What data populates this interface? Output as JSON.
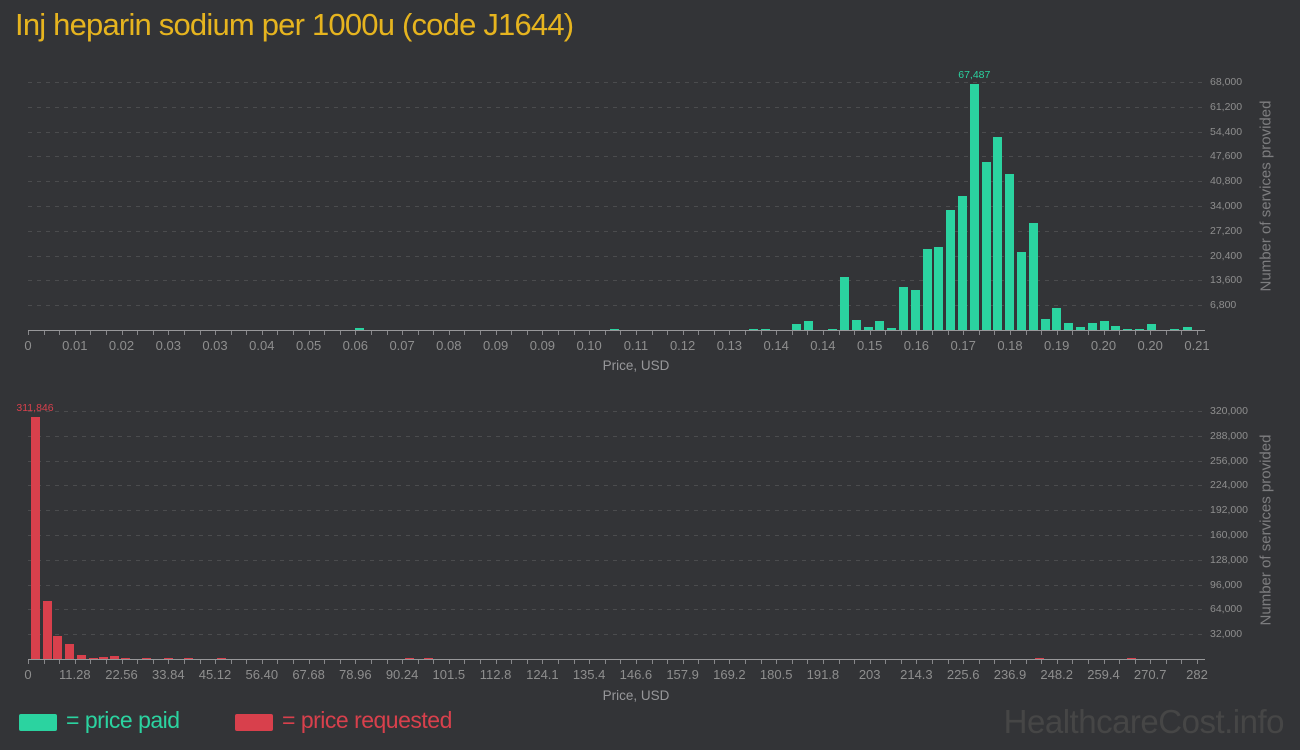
{
  "title": "Inj heparin sodium per 1000u (code J1644)",
  "watermark": "HealthcareCost.info",
  "colors": {
    "background": "#333437",
    "title_gold": "#e6b41f",
    "paid_green": "#2bd3a0",
    "requested_red": "#d8404c",
    "grid": "#4b4c4e",
    "tick_text": "#8e8e8e",
    "axis_line": "#98989a",
    "watermark_gray": "#464646"
  },
  "legend": {
    "paid_label": "= price paid",
    "requested_label": "= price requested"
  },
  "chart_data": [
    {
      "type": "bar",
      "series_name": "price paid",
      "color": "#2bd3a0",
      "xlabel": "Price, USD",
      "ylabel": "Number of services provided",
      "xlim": [
        0,
        0.21
      ],
      "ylim": [
        0,
        73500
      ],
      "grid": true,
      "legend_position": "bottom-left",
      "peak_label": "67,487",
      "x_tick_labels": [
        "0",
        "0.01",
        "0.02",
        "0.03",
        "0.03",
        "0.04",
        "0.05",
        "0.06",
        "0.07",
        "0.08",
        "0.09",
        "0.09",
        "0.10",
        "0.11",
        "0.12",
        "0.13",
        "0.14",
        "0.14",
        "0.15",
        "0.16",
        "0.17",
        "0.18",
        "0.19",
        "0.20",
        "0.20",
        "0.21"
      ],
      "y_ticks": [
        {
          "value": 6800,
          "label": "6,800"
        },
        {
          "value": 13600,
          "label": "13,600"
        },
        {
          "value": 20400,
          "label": "20,400"
        },
        {
          "value": 27200,
          "label": "27,200"
        },
        {
          "value": 34000,
          "label": "34,000"
        },
        {
          "value": 40800,
          "label": "40,800"
        },
        {
          "value": 47600,
          "label": "47,600"
        },
        {
          "value": 54400,
          "label": "54,400"
        },
        {
          "value": 61200,
          "label": "61,200"
        },
        {
          "value": 68000,
          "label": "68,000"
        }
      ],
      "bars": [
        [
          0.0596,
          500
        ],
        [
          0.1054,
          250
        ],
        [
          0.1303,
          300
        ],
        [
          0.1325,
          350
        ],
        [
          0.138,
          1600
        ],
        [
          0.1402,
          2500
        ],
        [
          0.1445,
          250
        ],
        [
          0.1467,
          14500
        ],
        [
          0.1488,
          2700
        ],
        [
          0.1509,
          900
        ],
        [
          0.153,
          2400
        ],
        [
          0.1551,
          650
        ],
        [
          0.1573,
          11700
        ],
        [
          0.1594,
          11000
        ],
        [
          0.1615,
          22300
        ],
        [
          0.1636,
          22800
        ],
        [
          0.1657,
          32900
        ],
        [
          0.1679,
          36800
        ],
        [
          0.17,
          67487
        ],
        [
          0.1721,
          46000
        ],
        [
          0.1742,
          52900
        ],
        [
          0.1763,
          42700
        ],
        [
          0.1785,
          21300
        ],
        [
          0.1806,
          29300
        ],
        [
          0.1827,
          2900
        ],
        [
          0.1848,
          6100
        ],
        [
          0.1869,
          2000
        ],
        [
          0.1891,
          900
        ],
        [
          0.1912,
          2000
        ],
        [
          0.1933,
          2600
        ],
        [
          0.1954,
          1100
        ],
        [
          0.1975,
          400
        ],
        [
          0.1997,
          350
        ],
        [
          0.2018,
          1700
        ],
        [
          0.206,
          200
        ],
        [
          0.2082,
          700
        ]
      ]
    },
    {
      "type": "bar",
      "series_name": "price requested",
      "color": "#d8404c",
      "xlabel": "Price, USD",
      "ylabel": "Number of services provided",
      "xlim": [
        0,
        282
      ],
      "ylim": [
        0,
        334000
      ],
      "grid": true,
      "legend_position": "bottom-left",
      "peak_label": "311,846",
      "x_tick_labels": [
        "0",
        "11.28",
        "22.56",
        "33.84",
        "45.12",
        "56.40",
        "67.68",
        "78.96",
        "90.24",
        "101.5",
        "112.8",
        "124.1",
        "135.4",
        "146.6",
        "157.9",
        "169.2",
        "180.5",
        "191.8",
        "203",
        "214.3",
        "225.6",
        "236.9",
        "248.2",
        "259.4",
        "270.7",
        "282"
      ],
      "y_ticks": [
        {
          "value": 32000,
          "label": "32,000"
        },
        {
          "value": 64000,
          "label": "64,000"
        },
        {
          "value": 96000,
          "label": "96,000"
        },
        {
          "value": 128000,
          "label": "128,000"
        },
        {
          "value": 160000,
          "label": "160,000"
        },
        {
          "value": 192000,
          "label": "192,000"
        },
        {
          "value": 224000,
          "label": "224,000"
        },
        {
          "value": 256000,
          "label": "256,000"
        },
        {
          "value": 288000,
          "label": "288,000"
        },
        {
          "value": 320000,
          "label": "320,000"
        }
      ],
      "bars": [
        [
          1.7,
          311846
        ],
        [
          4.6,
          74500
        ],
        [
          7.2,
          29500
        ],
        [
          10.1,
          19500
        ],
        [
          12.8,
          5500
        ],
        [
          15.7,
          1800
        ],
        [
          18.3,
          2000
        ],
        [
          20.8,
          3300
        ],
        [
          23.4,
          1600
        ],
        [
          28.5,
          1300
        ],
        [
          33.8,
          1300
        ],
        [
          38.8,
          1300
        ],
        [
          46.6,
          1100
        ],
        [
          91.9,
          1200
        ],
        [
          96.7,
          1200
        ],
        [
          243.9,
          1200
        ],
        [
          266.3,
          1200
        ]
      ]
    }
  ]
}
